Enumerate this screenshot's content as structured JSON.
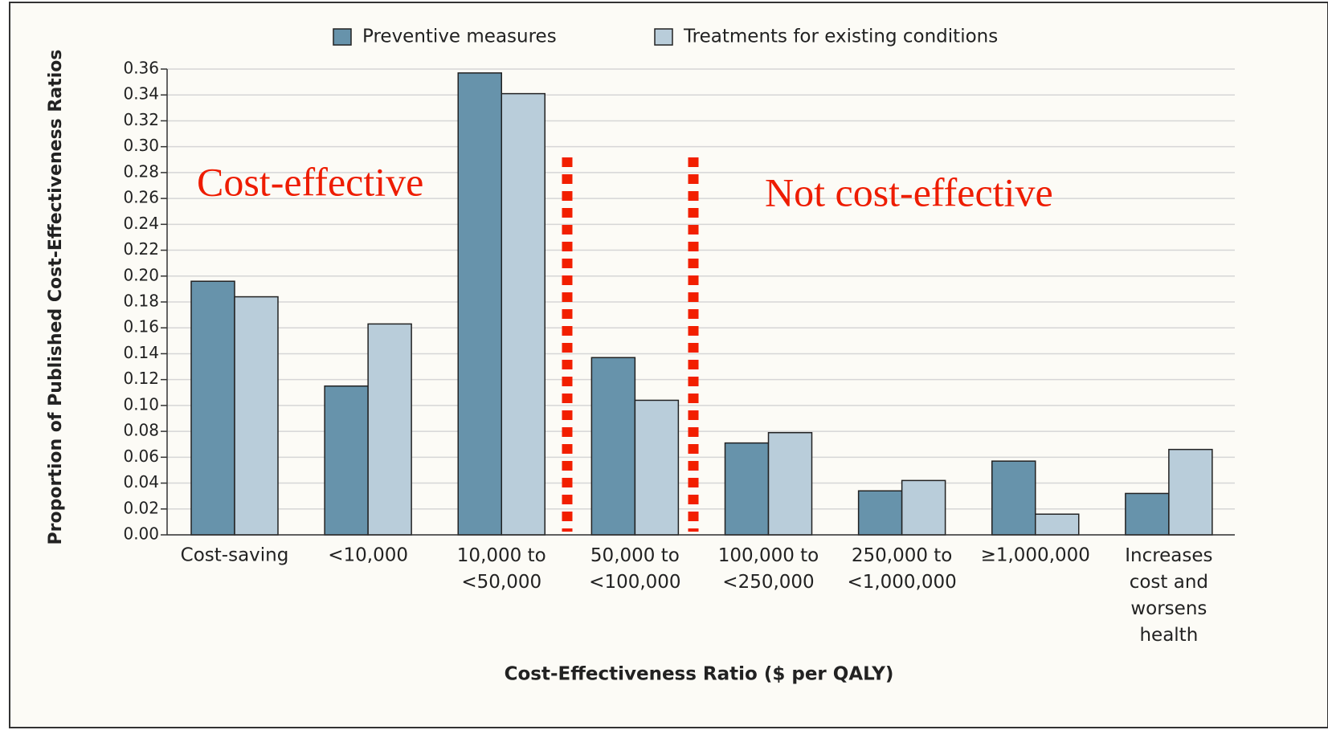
{
  "chart_data": {
    "type": "bar",
    "x_label": "Cost-Effectiveness Ratio ($ per QALY)",
    "y_label": "Proportion of Published Cost-Effectiveness Ratios",
    "categories": [
      "Cost-saving",
      "<10,000",
      "10,000 to\n<50,000",
      "50,000 to\n<100,000",
      "100,000 to\n<250,000",
      "250,000 to\n<1,000,000",
      "≥1,000,000",
      "Increases\ncost and\nworsens\nhealth"
    ],
    "series": [
      {
        "name": "Preventive measures",
        "color": "#6793ab",
        "values": [
          0.196,
          0.115,
          0.357,
          0.137,
          0.071,
          0.034,
          0.057,
          0.032
        ]
      },
      {
        "name": "Treatments for existing conditions",
        "color": "#b9cdda",
        "values": [
          0.184,
          0.163,
          0.341,
          0.104,
          0.079,
          0.042,
          0.016,
          0.066
        ]
      }
    ],
    "ylim": [
      0,
      0.36
    ],
    "yticks": [
      {
        "value": 0,
        "label": "0.00"
      },
      0.02,
      0.04,
      0.06,
      0.08,
      {
        "value": 0.1,
        "label": "0.10"
      },
      0.12,
      0.14,
      0.16,
      0.18,
      {
        "value": 0.2,
        "label": "0.20"
      },
      0.22,
      0.24,
      0.26,
      0.28,
      {
        "value": 0.3,
        "label": "0.30"
      },
      0.32,
      0.34,
      0.36
    ],
    "grid": true,
    "legend": "top",
    "annotations": [
      "Cost-effective",
      "Not cost-effective"
    ]
  }
}
